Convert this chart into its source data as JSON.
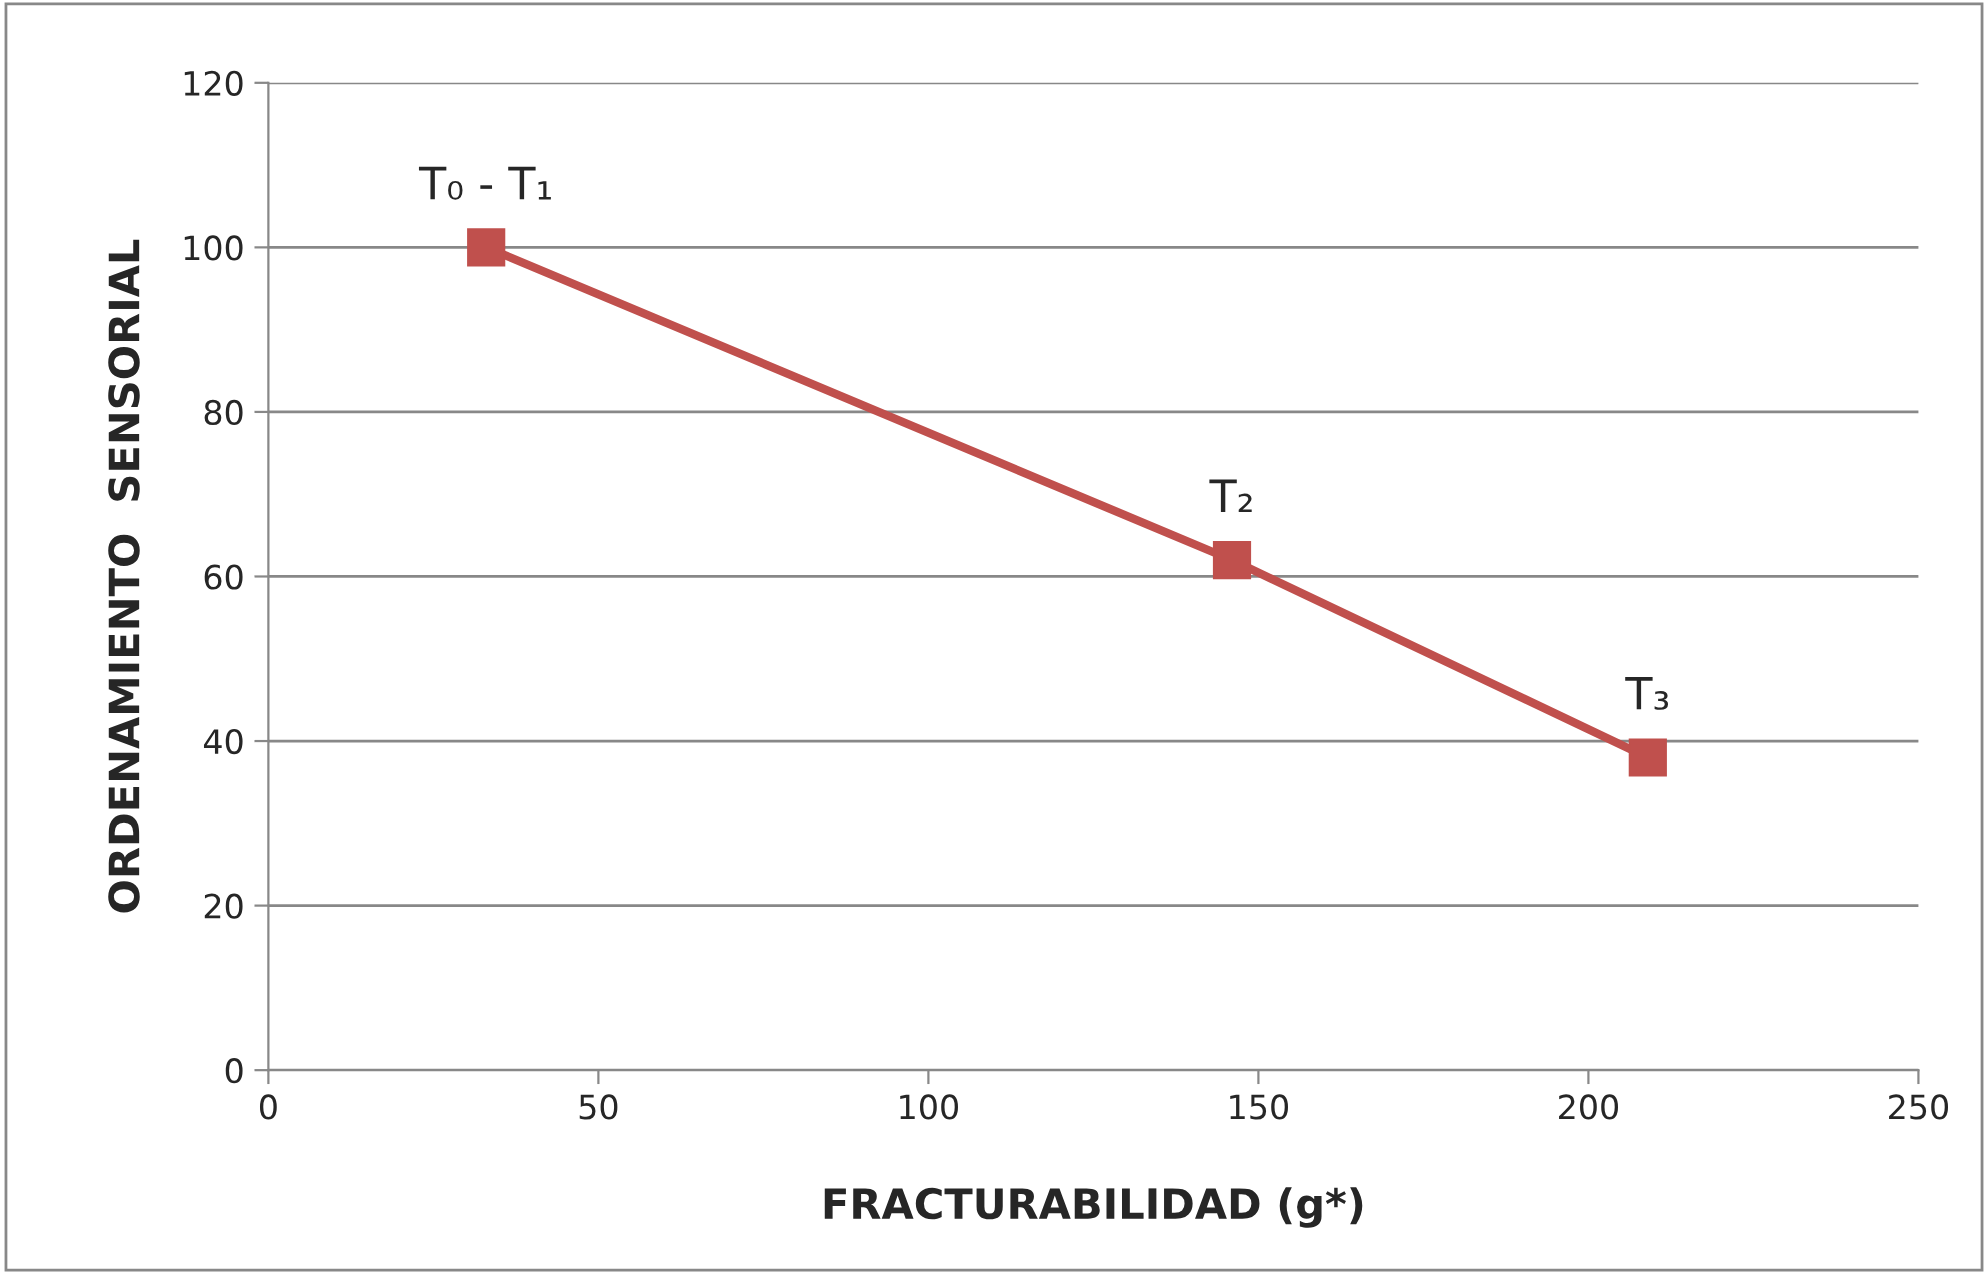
{
  "chart_data": {
    "type": "line",
    "xlabel": "FRACTURABILIDAD (g*)",
    "ylabel": "ORDENAMIENTO  SENSORIAL",
    "series": [
      {
        "color": "#c0504d",
        "x": [
          33,
          146,
          209
        ],
        "values": [
          100,
          62,
          38
        ]
      }
    ],
    "xlim": [
      0,
      250
    ],
    "xticks": [
      0,
      50,
      100,
      150,
      200,
      250
    ],
    "ylim": [
      0,
      120
    ],
    "yticks": [
      0,
      20,
      40,
      60,
      80,
      100,
      120
    ],
    "grid": "y",
    "legend": false,
    "marker": "square",
    "line_style": "solid",
    "annotations": [
      {
        "text": "T₀ - T₁",
        "x": 33,
        "y": 100
      },
      {
        "text": "T₂",
        "x": 146,
        "y": 62
      },
      {
        "text": "T₃",
        "x": 209,
        "y": 38
      }
    ]
  }
}
